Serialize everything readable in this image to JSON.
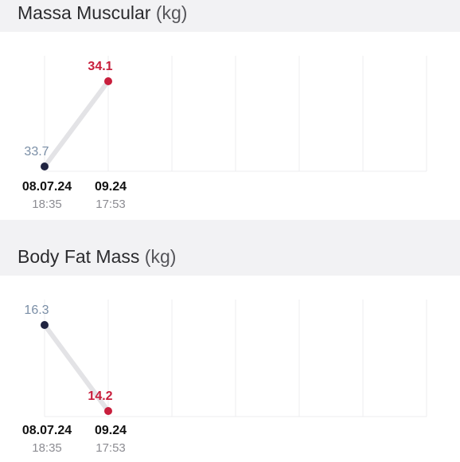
{
  "sections": [
    {
      "title": "Massa Muscular",
      "unit": "(kg)",
      "chart_data": {
        "type": "line",
        "x": [
          "08.07.24 18:35",
          "09.24 17:53"
        ],
        "series": [
          {
            "values": [
              33.7,
              34.1
            ]
          }
        ],
        "point_labels": [
          "33.7",
          "34.1"
        ],
        "tick_labels": [
          {
            "date": "08.07.24",
            "time": "18:35"
          },
          {
            "date": "09.24",
            "time": "17:53"
          }
        ],
        "point_colors": [
          "#1f2340",
          "#c81e3c"
        ],
        "label_colors": [
          "#7a8ea6",
          "#c81e3c"
        ],
        "grid": true
      }
    },
    {
      "title": "Body Fat Mass",
      "unit": "(kg)",
      "chart_data": {
        "type": "line",
        "x": [
          "08.07.24 18:35",
          "09.24 17:53"
        ],
        "series": [
          {
            "values": [
              16.3,
              14.2
            ]
          }
        ],
        "point_labels": [
          "16.3",
          "14.2"
        ],
        "tick_labels": [
          {
            "date": "08.07.24",
            "time": "18:35"
          },
          {
            "date": "09.24",
            "time": "17:53"
          }
        ],
        "point_colors": [
          "#1f2340",
          "#c81e3c"
        ],
        "label_colors": [
          "#7a8ea6",
          "#c81e3c"
        ],
        "grid": true
      }
    }
  ]
}
